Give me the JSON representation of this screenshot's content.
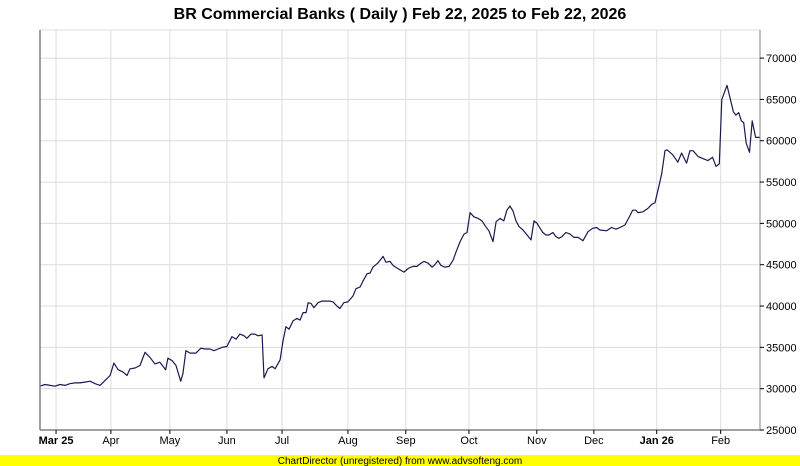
{
  "chart_data": {
    "type": "line",
    "title": "BR Commercial Banks ( Daily ) Feb 22, 2025 to Feb 22, 2026",
    "xlabel": "",
    "ylabel": "",
    "x_unit": "trading-day index",
    "xlim": [
      0,
      260
    ],
    "ylim": [
      25000,
      73400
    ],
    "grid": true,
    "yticks": [
      25000,
      30000,
      35000,
      40000,
      45000,
      50000,
      55000,
      60000,
      65000,
      70000
    ],
    "xticks": [
      {
        "label": "Mar 25",
        "x": 5.8,
        "major": true
      },
      {
        "label": "Apr",
        "x": 25.6,
        "major": false
      },
      {
        "label": "May",
        "x": 46.9,
        "major": false
      },
      {
        "label": "Jun",
        "x": 67.5,
        "major": false
      },
      {
        "label": "Jul",
        "x": 87.4,
        "major": false
      },
      {
        "label": "Aug",
        "x": 111.2,
        "major": false
      },
      {
        "label": "Sep",
        "x": 132.1,
        "major": false
      },
      {
        "label": "Oct",
        "x": 154.9,
        "major": false
      },
      {
        "label": "Nov",
        "x": 179.4,
        "major": false
      },
      {
        "label": "Dec",
        "x": 200.0,
        "major": false
      },
      {
        "label": "Jan 26",
        "x": 222.7,
        "major": true
      },
      {
        "label": "Feb",
        "x": 245.8,
        "major": false
      }
    ],
    "series": [
      {
        "name": "BR Commercial Banks",
        "color": "#1a1a50",
        "points": [
          [
            0,
            30300
          ],
          [
            1.8,
            30500
          ],
          [
            3.6,
            30400
          ],
          [
            5.4,
            30300
          ],
          [
            7.2,
            30500
          ],
          [
            9.0,
            30400
          ],
          [
            10.8,
            30600
          ],
          [
            12.6,
            30700
          ],
          [
            14.4,
            30700
          ],
          [
            16.2,
            30800
          ],
          [
            18.1,
            30900
          ],
          [
            19.9,
            30600
          ],
          [
            21.7,
            30400
          ],
          [
            23.5,
            31000
          ],
          [
            25.3,
            31600
          ],
          [
            26.7,
            33100
          ],
          [
            28.2,
            32300
          ],
          [
            30.0,
            32000
          ],
          [
            31.4,
            31600
          ],
          [
            32.5,
            32400
          ],
          [
            34.3,
            32500
          ],
          [
            36.1,
            32800
          ],
          [
            37.9,
            34400
          ],
          [
            39.7,
            33800
          ],
          [
            41.5,
            33000
          ],
          [
            43.3,
            33200
          ],
          [
            45.4,
            32300
          ],
          [
            46.2,
            33700
          ],
          [
            47.7,
            33400
          ],
          [
            49.1,
            32800
          ],
          [
            50.8,
            30900
          ],
          [
            51.6,
            31800
          ],
          [
            52.7,
            34600
          ],
          [
            54.2,
            34300
          ],
          [
            56.3,
            34300
          ],
          [
            58.1,
            34900
          ],
          [
            59.6,
            34800
          ],
          [
            61.4,
            34800
          ],
          [
            62.8,
            34600
          ],
          [
            64.3,
            34800
          ],
          [
            65.7,
            35000
          ],
          [
            67.5,
            35100
          ],
          [
            69.3,
            36300
          ],
          [
            70.8,
            36000
          ],
          [
            72.2,
            36600
          ],
          [
            73.7,
            36400
          ],
          [
            74.7,
            36100
          ],
          [
            76.2,
            36600
          ],
          [
            77.6,
            36600
          ],
          [
            78.7,
            36400
          ],
          [
            80.2,
            36500
          ],
          [
            80.9,
            31300
          ],
          [
            82.3,
            32400
          ],
          [
            83.8,
            32700
          ],
          [
            84.9,
            32400
          ],
          [
            86.7,
            33500
          ],
          [
            87.7,
            35700
          ],
          [
            88.8,
            37500
          ],
          [
            89.9,
            37200
          ],
          [
            91.4,
            38200
          ],
          [
            92.8,
            38500
          ],
          [
            93.9,
            38300
          ],
          [
            95.0,
            39200
          ],
          [
            96.1,
            39200
          ],
          [
            96.8,
            40400
          ],
          [
            97.9,
            40300
          ],
          [
            98.9,
            39800
          ],
          [
            100.4,
            40400
          ],
          [
            101.8,
            40600
          ],
          [
            104.7,
            40600
          ],
          [
            105.8,
            40500
          ],
          [
            107.2,
            40000
          ],
          [
            108.3,
            39700
          ],
          [
            109.7,
            40400
          ],
          [
            111.2,
            40500
          ],
          [
            113.0,
            41200
          ],
          [
            114.1,
            42100
          ],
          [
            115.6,
            42300
          ],
          [
            116.6,
            43000
          ],
          [
            118.1,
            43900
          ],
          [
            119.2,
            44000
          ],
          [
            120.2,
            44700
          ],
          [
            122.0,
            45200
          ],
          [
            123.9,
            46000
          ],
          [
            124.9,
            45300
          ],
          [
            126.4,
            45400
          ],
          [
            127.5,
            44900
          ],
          [
            128.9,
            44600
          ],
          [
            130.4,
            44300
          ],
          [
            131.4,
            44100
          ],
          [
            133.2,
            44600
          ],
          [
            134.7,
            44800
          ],
          [
            136.1,
            44800
          ],
          [
            137.6,
            45200
          ],
          [
            138.7,
            45400
          ],
          [
            140.1,
            45200
          ],
          [
            141.6,
            44700
          ],
          [
            142.6,
            45000
          ],
          [
            143.7,
            45500
          ],
          [
            144.8,
            44900
          ],
          [
            146.2,
            44700
          ],
          [
            147.7,
            44800
          ],
          [
            149.1,
            45500
          ],
          [
            150.2,
            46500
          ],
          [
            151.7,
            47800
          ],
          [
            153.1,
            48700
          ],
          [
            154.2,
            48900
          ],
          [
            155.3,
            51300
          ],
          [
            156.7,
            50800
          ],
          [
            158.2,
            50600
          ],
          [
            159.6,
            50300
          ],
          [
            161.0,
            49600
          ],
          [
            162.1,
            49100
          ],
          [
            163.6,
            47800
          ],
          [
            164.7,
            50200
          ],
          [
            166.1,
            50600
          ],
          [
            167.5,
            50300
          ],
          [
            168.6,
            51600
          ],
          [
            169.7,
            52100
          ],
          [
            170.8,
            51500
          ],
          [
            171.9,
            50300
          ],
          [
            173.0,
            49600
          ],
          [
            174.4,
            49200
          ],
          [
            175.9,
            48600
          ],
          [
            177.3,
            48000
          ],
          [
            178.4,
            50300
          ],
          [
            179.5,
            50000
          ],
          [
            180.6,
            49400
          ],
          [
            181.6,
            48900
          ],
          [
            182.7,
            48600
          ],
          [
            183.8,
            48600
          ],
          [
            185.2,
            48900
          ],
          [
            186.3,
            48400
          ],
          [
            187.4,
            48200
          ],
          [
            188.5,
            48400
          ],
          [
            189.9,
            48900
          ],
          [
            191.4,
            48700
          ],
          [
            192.8,
            48300
          ],
          [
            194.3,
            48300
          ],
          [
            196.1,
            47900
          ],
          [
            197.9,
            49000
          ],
          [
            199.6,
            49400
          ],
          [
            201.0,
            49500
          ],
          [
            202.2,
            49200
          ],
          [
            204.6,
            49100
          ],
          [
            206.4,
            49500
          ],
          [
            208.0,
            49300
          ],
          [
            209.4,
            49500
          ],
          [
            211.2,
            49800
          ],
          [
            213.0,
            50900
          ],
          [
            214.0,
            51600
          ],
          [
            215.2,
            51600
          ],
          [
            215.9,
            51300
          ],
          [
            217.7,
            51400
          ],
          [
            219.5,
            51800
          ],
          [
            220.9,
            52300
          ],
          [
            222.1,
            52500
          ],
          [
            223.5,
            54500
          ],
          [
            224.5,
            56000
          ],
          [
            225.7,
            58800
          ],
          [
            226.4,
            58900
          ],
          [
            228.5,
            58300
          ],
          [
            230.3,
            57400
          ],
          [
            231.7,
            58500
          ],
          [
            233.5,
            57300
          ],
          [
            234.7,
            58800
          ],
          [
            235.8,
            58800
          ],
          [
            237.6,
            58100
          ],
          [
            238.9,
            57900
          ],
          [
            241.2,
            57600
          ],
          [
            242.9,
            58000
          ],
          [
            244.1,
            56900
          ],
          [
            245.3,
            57200
          ],
          [
            246.2,
            65000
          ],
          [
            248.1,
            66700
          ],
          [
            250.4,
            63500
          ],
          [
            251.3,
            63100
          ],
          [
            252.3,
            63400
          ],
          [
            253.3,
            62400
          ],
          [
            254.1,
            62200
          ],
          [
            255.0,
            59700
          ],
          [
            256.2,
            58600
          ],
          [
            257.2,
            62400
          ],
          [
            258.4,
            60400
          ],
          [
            260.0,
            60400
          ]
        ]
      }
    ]
  },
  "colors": {
    "line": "#1a1a50",
    "grid": "#dcdcdc",
    "axis": "#808080",
    "footer_bg": "#ffff00"
  },
  "footer": "ChartDirector (unregistered) from www.advsofteng.com"
}
